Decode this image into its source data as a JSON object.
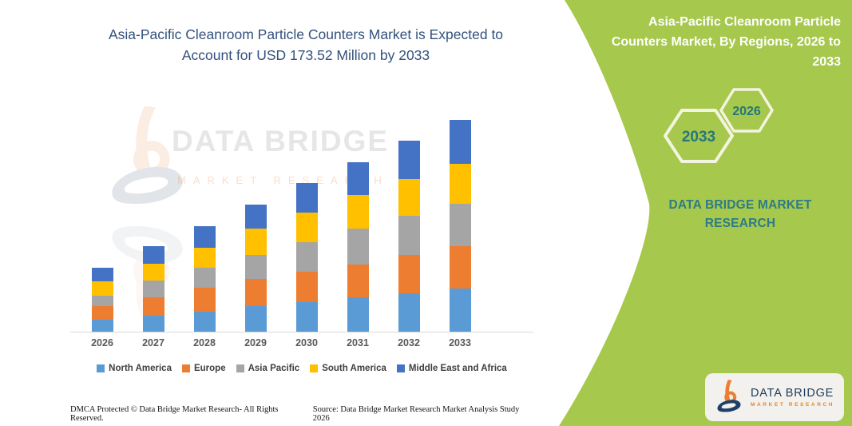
{
  "main_title": "Asia-Pacific Cleanroom Particle Counters Market is Expected to Account for USD 173.52 Million by 2033",
  "chart_data": {
    "type": "bar",
    "stacked": true,
    "title": "Asia-Pacific Cleanroom Particle Counters Market is Expected to Account for USD 173.52 Million by 2033",
    "value_unit": "USD Million",
    "values_estimated_from_pixels": true,
    "categories": [
      "2026",
      "2027",
      "2028",
      "2029",
      "2030",
      "2031",
      "2032",
      "2033"
    ],
    "series": [
      {
        "name": "North America",
        "color": "#5B9BD5",
        "values": [
          9.8,
          13.0,
          16.4,
          20.8,
          24.2,
          28.0,
          31.6,
          35.4
        ]
      },
      {
        "name": "Europe",
        "color": "#ED7D31",
        "values": [
          10.9,
          15.0,
          19.6,
          22.3,
          24.6,
          27.2,
          31.2,
          34.5
        ]
      },
      {
        "name": "Asia Pacific",
        "color": "#A5A5A5",
        "values": [
          8.7,
          14.0,
          16.4,
          19.8,
          24.4,
          29.3,
          32.1,
          34.9
        ]
      },
      {
        "name": "South America",
        "color": "#FFC000",
        "values": [
          11.6,
          13.5,
          16.4,
          21.6,
          24.4,
          27.4,
          30.1,
          32.7
        ]
      },
      {
        "name": "Middle East and Africa",
        "color": "#4472C4",
        "values": [
          11.3,
          14.8,
          17.7,
          19.6,
          24.4,
          27.2,
          31.6,
          36.0
        ]
      }
    ],
    "totals_by_year": [
      52.3,
      70.3,
      86.5,
      104.1,
      122.0,
      139.1,
      156.6,
      173.5
    ],
    "ylim": [
      0,
      180
    ],
    "y_axis_visible": false,
    "gridlines": false,
    "legend_position": "bottom",
    "x_axis_labels_visible": true
  },
  "watermark": {
    "brand": "DATA BRIDGE",
    "sub": "MARKET RESEARCH"
  },
  "right_panel": {
    "title": "Asia-Pacific Cleanroom Particle Counters Market, By Regions, 2026 to 2033",
    "hexagon_large": "2033",
    "hexagon_small": "2026",
    "brand": "DATA BRIDGE MARKET RESEARCH"
  },
  "logo_card": {
    "brand": "DATA BRIDGE",
    "sub": "MARKET RESEARCH"
  },
  "footer": {
    "left": "DMCA Protected © Data Bridge Market Research-  All Rights Reserved.",
    "right": "Source: Data Bridge Market Research  Market Analysis Study 2026"
  },
  "colors": {
    "panel_green": "#A6C84C",
    "title_navy": "#33517E",
    "brand_teal": "#2E7B87",
    "hexagon_outline": "#F3F4DF",
    "hexagon_year_text": "#25777E",
    "axis_line": "#D9D9D9",
    "x_label_gray": "#595959",
    "legend_text": "#3F3F3F",
    "card_bg": "#F2F1ED",
    "card_navy": "#1C3A5E",
    "card_orange": "#E8832A"
  }
}
